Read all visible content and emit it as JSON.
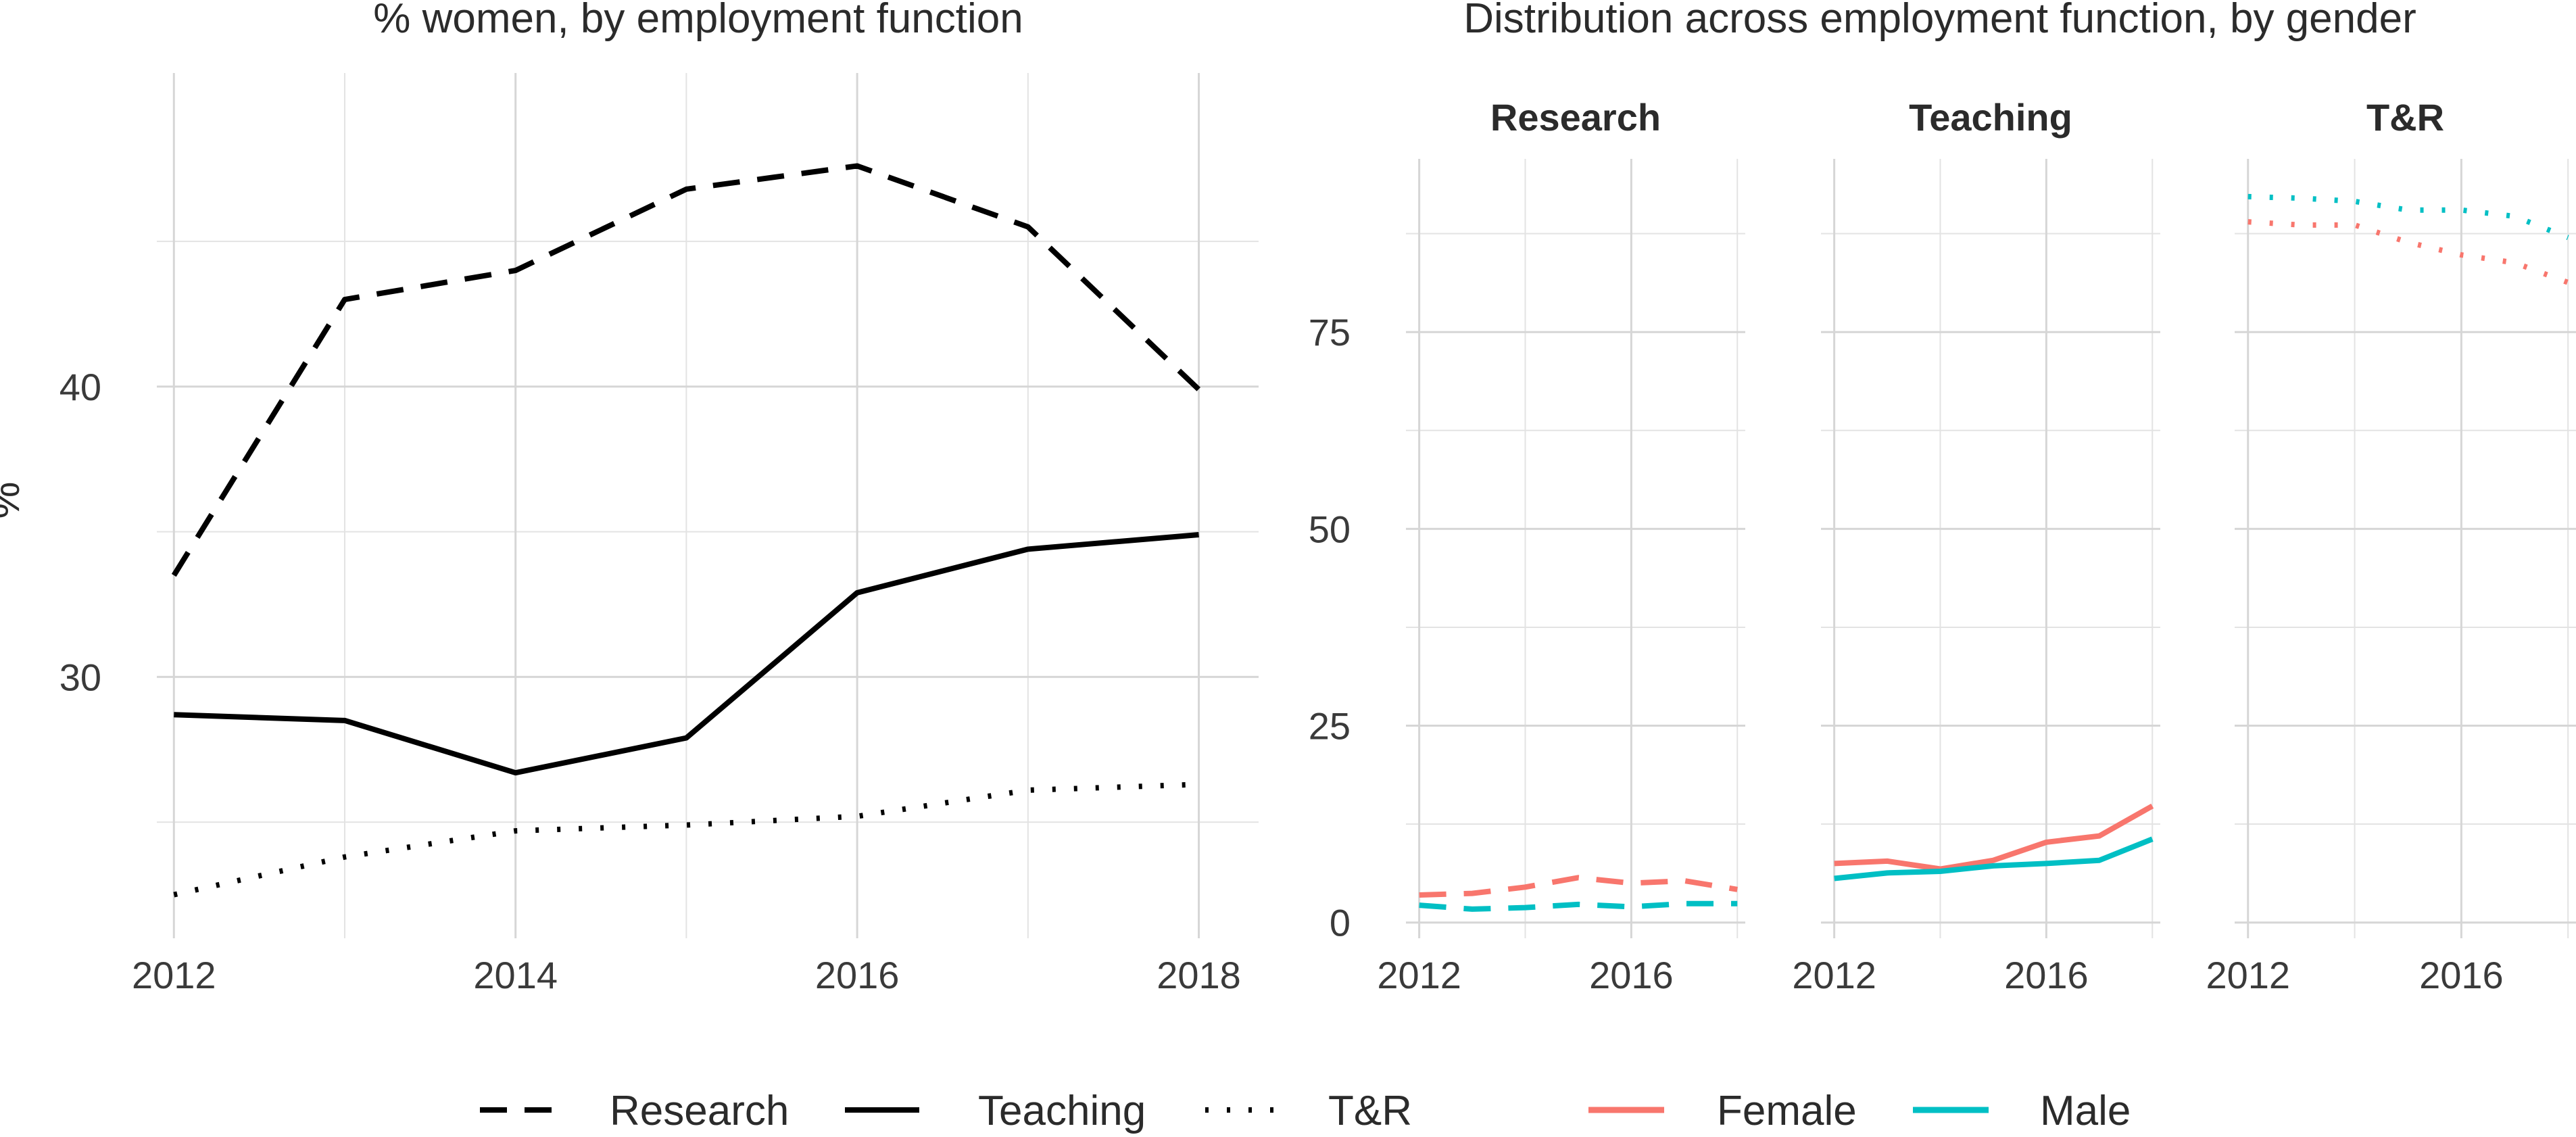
{
  "chart_data": [
    {
      "type": "line",
      "title": "% women, by employment function",
      "xlabel": "",
      "ylabel": "%",
      "x": [
        2012,
        2013,
        2014,
        2015,
        2016,
        2017,
        2018
      ],
      "xticks": [
        2012,
        2014,
        2016,
        2018
      ],
      "yticks": [
        30,
        40
      ],
      "xlim": [
        2011.9,
        2018.35
      ],
      "ylim": [
        21,
        50.8
      ],
      "grid": true,
      "series": [
        {
          "name": "Research",
          "linetype": "dashed",
          "color": "#000000",
          "values": [
            33.5,
            43.0,
            44.0,
            46.8,
            47.6,
            45.5,
            39.9
          ]
        },
        {
          "name": "Teaching",
          "linetype": "solid",
          "color": "#000000",
          "values": [
            28.7,
            28.5,
            26.7,
            27.9,
            32.9,
            34.4,
            34.9
          ]
        },
        {
          "name": "T&R",
          "linetype": "dotted",
          "color": "#000000",
          "values": [
            22.5,
            23.8,
            24.7,
            24.9,
            25.2,
            26.1,
            26.3
          ]
        }
      ]
    },
    {
      "type": "line",
      "title": "Distribution across employment function, by gender",
      "xlabel": "",
      "ylabel": "",
      "x": [
        2012,
        2013,
        2014,
        2015,
        2016,
        2017,
        2018
      ],
      "xticks": [
        2012,
        2016
      ],
      "yticks": [
        0,
        25,
        50,
        75
      ],
      "xlim": [
        2011.75,
        2018.15
      ],
      "ylim": [
        -2,
        97
      ],
      "grid": true,
      "facets": [
        {
          "label": "Research",
          "linetype": "dashed",
          "series": [
            {
              "name": "Female",
              "values": [
                3.5,
                3.7,
                4.5,
                5.7,
                5.0,
                5.3,
                4.2
              ]
            },
            {
              "name": "Male",
              "values": [
                2.2,
                1.7,
                1.9,
                2.3,
                2.0,
                2.4,
                2.4
              ]
            }
          ]
        },
        {
          "label": "Teaching",
          "linetype": "solid",
          "series": [
            {
              "name": "Female",
              "values": [
                7.5,
                7.8,
                6.8,
                7.9,
                10.2,
                11.0,
                14.8
              ]
            },
            {
              "name": "Male",
              "values": [
                5.6,
                6.3,
                6.5,
                7.2,
                7.5,
                7.9,
                10.6
              ]
            }
          ]
        },
        {
          "label": "T&R",
          "linetype": "dotted",
          "series": [
            {
              "name": "Female",
              "values": [
                89.0,
                88.6,
                88.6,
                86.4,
                84.8,
                83.8,
                81.3
              ]
            },
            {
              "name": "Male",
              "values": [
                92.2,
                92.0,
                91.6,
                90.5,
                90.5,
                89.7,
                87.0
              ]
            }
          ]
        }
      ],
      "colors": {
        "Female": "#F8766D",
        "Male": "#00BFC4"
      }
    }
  ],
  "legend": {
    "placement": "bottom",
    "linetype": [
      {
        "label": "Research",
        "dash": "dashed"
      },
      {
        "label": "Teaching",
        "dash": "solid"
      },
      {
        "label": "T&R",
        "dash": "dotted"
      }
    ],
    "colour": [
      {
        "label": "Female",
        "color": "#F8766D"
      },
      {
        "label": "Male",
        "color": "#00BFC4"
      }
    ]
  }
}
